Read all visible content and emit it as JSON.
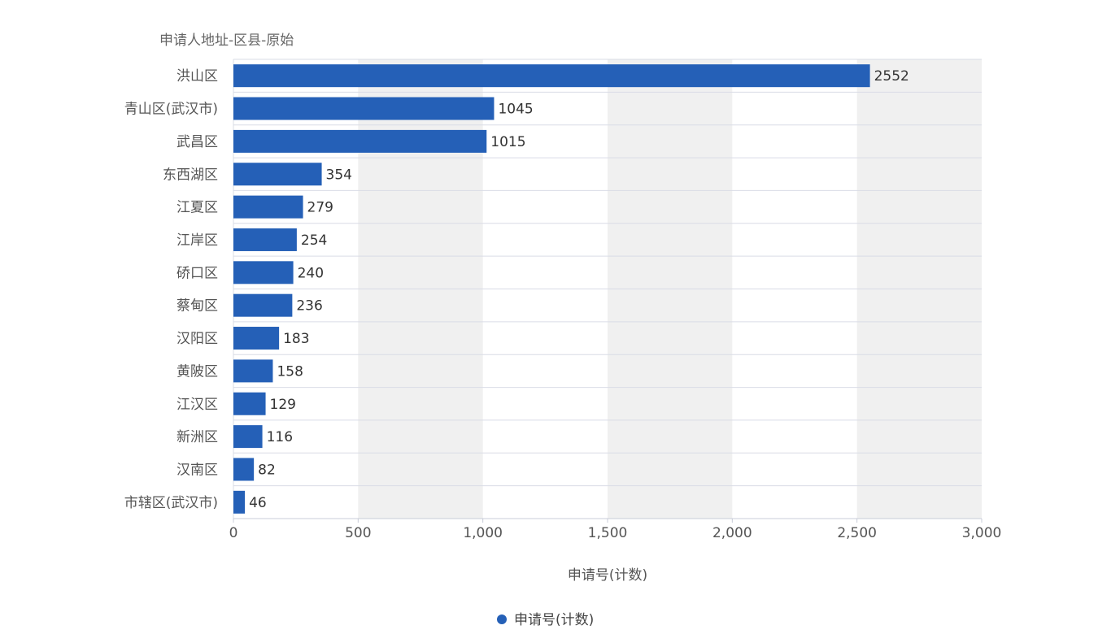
{
  "chart_data": {
    "type": "bar",
    "orientation": "horizontal",
    "title": "",
    "ylabel": "申请人地址-区县-原始",
    "xlabel": "申请号(计数)",
    "categories": [
      "洪山区",
      "青山区(武汉市)",
      "武昌区",
      "东西湖区",
      "江夏区",
      "江岸区",
      "硚口区",
      "蔡甸区",
      "汉阳区",
      "黄陂区",
      "江汉区",
      "新洲区",
      "汉南区",
      "市辖区(武汉市)"
    ],
    "series": [
      {
        "name": "申请号(计数)",
        "values": [
          2552,
          1045,
          1015,
          354,
          279,
          254,
          240,
          236,
          183,
          158,
          129,
          116,
          82,
          46
        ]
      }
    ],
    "xlim": [
      0,
      3000
    ],
    "x_ticks": [
      0,
      500,
      1000,
      1500,
      2000,
      2500,
      3000
    ],
    "x_tick_labels": [
      "0",
      "500",
      "1,000",
      "1,500",
      "2,000",
      "2,500",
      "3,000"
    ],
    "grid": true,
    "legend_position": "bottom",
    "colors": {
      "bar": "#2560b7",
      "band": "#f0f0f0",
      "grid": "#d9dce6"
    }
  }
}
